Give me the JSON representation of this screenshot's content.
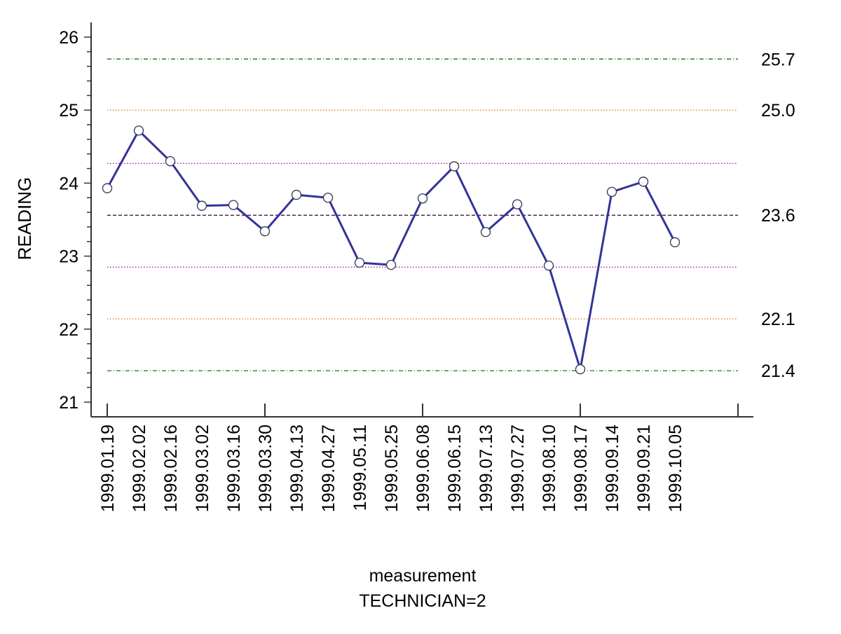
{
  "chart_data": {
    "type": "line",
    "ylabel": "READING",
    "xlabel": "measurement",
    "subtitle": "TECHNICIAN=2",
    "ylim": [
      21,
      26
    ],
    "yticks": [
      "21",
      "22",
      "23",
      "24",
      "25",
      "26"
    ],
    "categories": [
      "1999.01.19",
      "1999.02.02",
      "1999.02.16",
      "1999.03.02",
      "1999.03.16",
      "1999.03.30",
      "1999.04.13",
      "1999.04.27",
      "1999.05.11",
      "1999.05.25",
      "1999.06.08",
      "1999.06.15",
      "1999.07.13",
      "1999.07.27",
      "1999.08.10",
      "1999.08.17",
      "1999.09.14",
      "1999.09.21",
      "1999.10.05"
    ],
    "series": [
      {
        "color": "#333399",
        "values": [
          23.93,
          24.72,
          24.3,
          23.69,
          23.7,
          23.34,
          23.84,
          23.8,
          22.91,
          22.88,
          23.79,
          24.23,
          23.33,
          23.71,
          22.87,
          21.45,
          23.88,
          24.02,
          23.19
        ]
      }
    ],
    "reference_lines": [
      {
        "value": 25.7,
        "label": "25.7",
        "color": "#006600",
        "style": "dashdot"
      },
      {
        "value": 25.0,
        "label": "25.0",
        "color": "#cc6600",
        "style": "dotted"
      },
      {
        "value": 24.27,
        "label": "",
        "color": "#990099",
        "style": "dotted"
      },
      {
        "value": 23.56,
        "label": "23.6",
        "color": "#330033",
        "style": "dashed"
      },
      {
        "value": 22.85,
        "label": "",
        "color": "#990099",
        "style": "dotted"
      },
      {
        "value": 22.14,
        "label": "22.1",
        "color": "#cc6600",
        "style": "dotted"
      },
      {
        "value": 21.43,
        "label": "21.4",
        "color": "#006600",
        "style": "dashdot"
      }
    ],
    "grid": false,
    "legend": "none"
  }
}
